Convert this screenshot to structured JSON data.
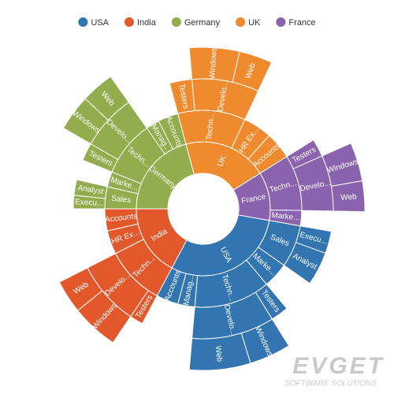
{
  "chart_data": {
    "type": "sunburst",
    "legend_position": "top",
    "series": [
      {
        "name": "USA",
        "color": "#3275b0",
        "children": [
          {
            "name": "Sales",
            "children": [
              {
                "name": "Execu...",
                "value": 10
              },
              {
                "name": "Analyst",
                "value": 15
              }
            ]
          },
          {
            "name": "Marke...",
            "value": 15
          },
          {
            "name": "Techn...",
            "children": [
              {
                "name": "Testers",
                "value": 8
              },
              {
                "name": "Develo...",
                "children": [
                  {
                    "name": "Windows",
                    "value": 15
                  },
                  {
                    "name": "Web",
                    "value": 22
                  }
                ]
              }
            ]
          },
          {
            "name": "Manag...",
            "value": 10
          },
          {
            "name": "Accounts",
            "value": 13
          }
        ]
      },
      {
        "name": "India",
        "color": "#e2582b",
        "children": [
          {
            "name": "Techn...",
            "children": [
              {
                "name": "Testers",
                "value": 6
              },
              {
                "name": "Develo...",
                "children": [
                  {
                    "name": "Windows",
                    "value": 17
                  },
                  {
                    "name": "Web",
                    "value": 12
                  }
                ]
              }
            ]
          },
          {
            "name": "HR Ex...",
            "value": 14
          },
          {
            "name": "Accounts",
            "value": 13
          }
        ]
      },
      {
        "name": "Germany",
        "color": "#93ad4e",
        "children": [
          {
            "name": "Sales",
            "children": [
              {
                "name": "Execu...",
                "value": 6
              },
              {
                "name": "Analyst",
                "value": 7
              }
            ]
          },
          {
            "name": "Marke...",
            "value": 9
          },
          {
            "name": "Techn...",
            "children": [
              {
                "name": "Testers",
                "value": 8
              },
              {
                "name": "Develo...",
                "children": [
                  {
                    "name": "Windows",
                    "value": 13
                  },
                  {
                    "name": "Web",
                    "value": 12
                  }
                ]
              }
            ]
          },
          {
            "name": "Manag...",
            "value": 8
          },
          {
            "name": "Accounts",
            "value": 12
          }
        ]
      },
      {
        "name": "UK",
        "color": "#f08a2e",
        "children": [
          {
            "name": "Techn...",
            "children": [
              {
                "name": "Testers",
                "value": 10
              },
              {
                "name": "Develo...",
                "children": [
                  {
                    "name": "Windows",
                    "value": 18
                  },
                  {
                    "name": "Web",
                    "value": 12
                  }
                ]
              }
            ]
          },
          {
            "name": "HR Ex...",
            "value": 17
          },
          {
            "name": "Accounts",
            "value": 16
          }
        ]
      },
      {
        "name": "France",
        "color": "#8a62ad",
        "children": [
          {
            "name": "Techn...",
            "children": [
              {
                "name": "Testers",
                "value": 8
              },
              {
                "name": "Develo...",
                "children": [
                  {
                    "name": "Windows",
                    "value": 14
                  },
                  {
                    "name": "Web",
                    "value": 11
                  }
                ]
              }
            ]
          },
          {
            "name": "Marke...",
            "value": 9
          }
        ]
      }
    ]
  },
  "watermark": {
    "title": "EVGET",
    "subtitle": "SOFTWARE SOLUTIONS"
  }
}
